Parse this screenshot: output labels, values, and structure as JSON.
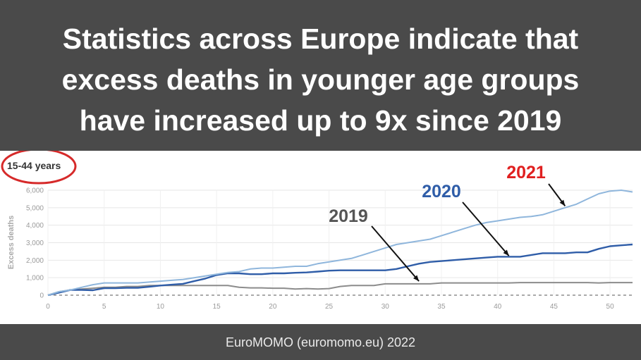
{
  "headline": {
    "line1": "Statistics across Europe indicate that",
    "line2": "excess deaths in younger age groups",
    "line3": "have increased up to 9x since 2019"
  },
  "footer": {
    "source": "EuroMOMO (euromomo.eu) 2022"
  },
  "colors": {
    "banner": "#4a4a4a",
    "s2019": "#8c8c8c",
    "s2020": "#2f5da8",
    "s2021": "#8fb6dc",
    "label2019": "#555555",
    "label2020": "#2f5da8",
    "label2021": "#e02020",
    "circle": "#d62a2a"
  },
  "chart_data": {
    "type": "line",
    "title": "15-44 years",
    "xlabel": "",
    "ylabel": "Excess deaths",
    "xlim": [
      0,
      52
    ],
    "ylim": [
      0,
      6000
    ],
    "xticks": [
      0,
      5,
      10,
      15,
      20,
      25,
      30,
      35,
      40,
      45,
      50
    ],
    "yticks": [
      0,
      1000,
      2000,
      3000,
      4000,
      5000,
      6000
    ],
    "ytick_labels": [
      "0",
      "1,000",
      "2,000",
      "3,000",
      "4,000",
      "5,000",
      "6,000"
    ],
    "grid": true,
    "x": [
      0,
      1,
      2,
      3,
      4,
      5,
      6,
      7,
      8,
      9,
      10,
      11,
      12,
      13,
      14,
      15,
      16,
      17,
      18,
      19,
      20,
      21,
      22,
      23,
      24,
      25,
      26,
      27,
      28,
      29,
      30,
      31,
      32,
      33,
      34,
      35,
      36,
      37,
      38,
      39,
      40,
      41,
      42,
      43,
      44,
      45,
      46,
      47,
      48,
      49,
      50,
      51,
      52
    ],
    "series": [
      {
        "name": "2019",
        "color": "#8c8c8c",
        "values": [
          0,
          200,
          300,
          350,
          400,
          450,
          450,
          500,
          500,
          550,
          550,
          550,
          550,
          550,
          550,
          550,
          550,
          450,
          420,
          420,
          400,
          400,
          350,
          380,
          350,
          380,
          500,
          550,
          550,
          550,
          650,
          650,
          650,
          650,
          650,
          700,
          700,
          700,
          700,
          700,
          700,
          700,
          720,
          720,
          720,
          720,
          720,
          720,
          720,
          700,
          720,
          720,
          720
        ]
      },
      {
        "name": "2020",
        "color": "#2f5da8",
        "values": [
          0,
          150,
          300,
          300,
          280,
          400,
          400,
          420,
          420,
          480,
          550,
          600,
          650,
          800,
          950,
          1150,
          1250,
          1250,
          1200,
          1200,
          1250,
          1250,
          1280,
          1300,
          1350,
          1400,
          1420,
          1420,
          1420,
          1420,
          1420,
          1500,
          1650,
          1800,
          1900,
          1950,
          2000,
          2050,
          2100,
          2150,
          2200,
          2200,
          2200,
          2300,
          2400,
          2400,
          2400,
          2450,
          2450,
          2650,
          2800,
          2850,
          2900
        ]
      },
      {
        "name": "2021",
        "color": "#8fb6dc",
        "values": [
          0,
          200,
          300,
          450,
          600,
          700,
          700,
          700,
          700,
          750,
          800,
          850,
          900,
          1000,
          1100,
          1200,
          1300,
          1350,
          1500,
          1550,
          1550,
          1600,
          1650,
          1650,
          1800,
          1900,
          2000,
          2100,
          2300,
          2500,
          2700,
          2900,
          3000,
          3100,
          3200,
          3400,
          3600,
          3800,
          4000,
          4150,
          4250,
          4350,
          4450,
          4500,
          4600,
          4800,
          5000,
          5200,
          5500,
          5800,
          5950,
          6000,
          5900
        ]
      }
    ],
    "annotations": [
      {
        "text": "2019",
        "target_x": 33,
        "target_y": 800
      },
      {
        "text": "2020",
        "target_x": 41,
        "target_y": 2250
      },
      {
        "text": "2021",
        "target_x": 46,
        "target_y": 5100
      }
    ]
  }
}
